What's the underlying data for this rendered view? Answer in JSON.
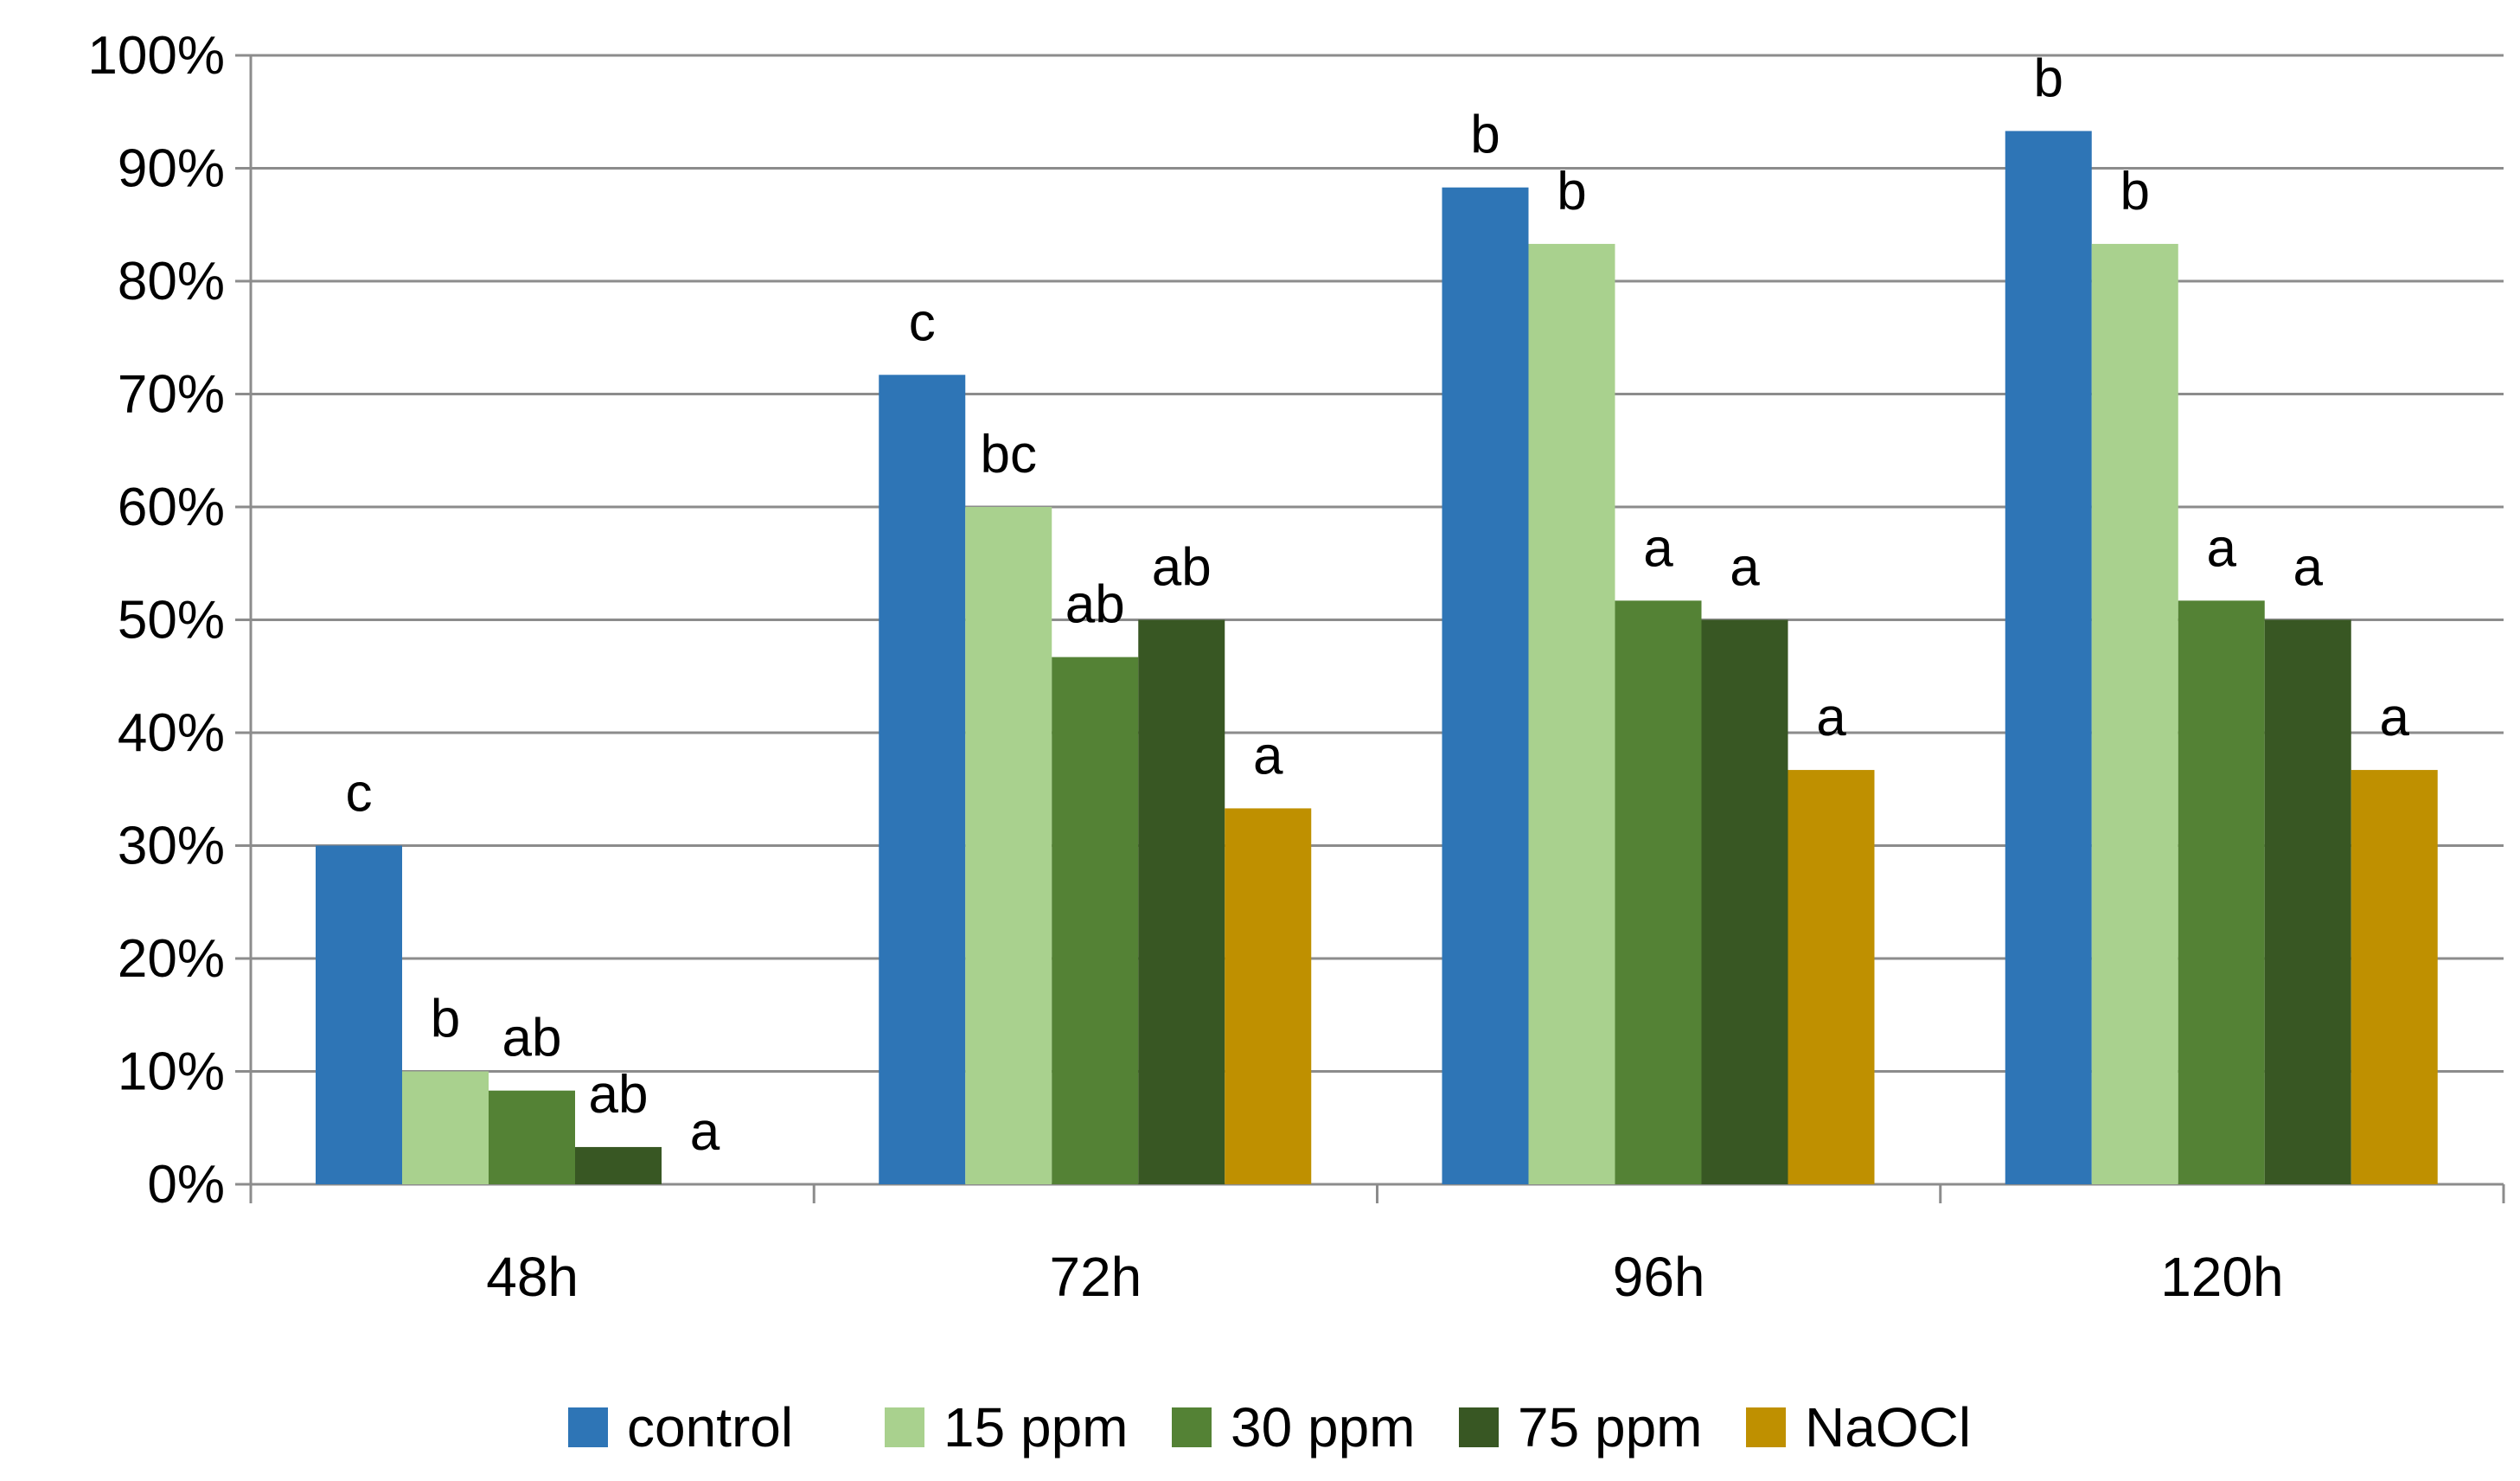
{
  "chart_data": {
    "type": "bar",
    "title": "",
    "xlabel": "",
    "ylabel": "",
    "ylim": [
      0,
      100
    ],
    "y_ticks": [
      "0%",
      "10%",
      "20%",
      "30%",
      "40%",
      "50%",
      "60%",
      "70%",
      "80%",
      "90%",
      "100%"
    ],
    "grid": true,
    "legend_position": "bottom",
    "categories": [
      "48h",
      "72h",
      "96h",
      "120h"
    ],
    "series": [
      {
        "name": "control",
        "color": "#2E75B6",
        "values": [
          30,
          71.7,
          88.3,
          93.3
        ],
        "labels": [
          "c",
          "c",
          "b",
          "b"
        ]
      },
      {
        "name": "15 ppm",
        "color": "#A9D18E",
        "values": [
          10,
          60,
          83.3,
          83.3
        ],
        "labels": [
          "b",
          "bc",
          "b",
          "b"
        ]
      },
      {
        "name": "30 ppm",
        "color": "#548235",
        "values": [
          8.3,
          46.7,
          51.7,
          51.7
        ],
        "labels": [
          "ab",
          "ab",
          "a",
          "a"
        ]
      },
      {
        "name": "75 ppm",
        "color": "#385723",
        "values": [
          3.3,
          50,
          50,
          50
        ],
        "labels": [
          "ab",
          "ab",
          "a",
          "a"
        ]
      },
      {
        "name": "NaOCl",
        "color": "#BF9000",
        "values": [
          0,
          33.3,
          36.7,
          36.7
        ],
        "labels": [
          "a",
          "a",
          "a",
          "a"
        ]
      }
    ]
  }
}
